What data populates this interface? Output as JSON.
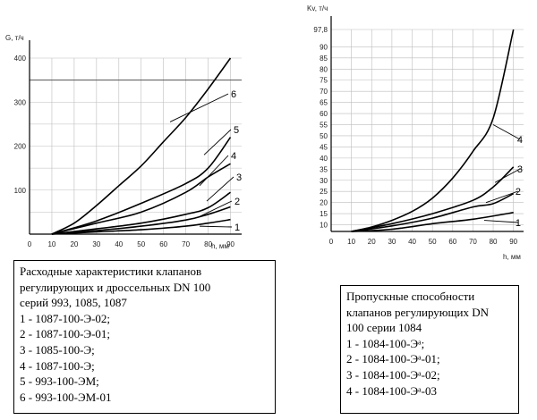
{
  "chart_data": [
    {
      "type": "line",
      "ylabel": "G, т/ч",
      "xlabel": "h, мм",
      "x_ticks": [
        "0",
        "10",
        "20",
        "30",
        "40",
        "50",
        "60",
        "70",
        "80",
        "90"
      ],
      "y_ticks": [
        "100",
        "200",
        "300",
        "400"
      ],
      "xlim": [
        0,
        95
      ],
      "ylim": [
        0,
        400
      ],
      "reference_line": 350,
      "grid": true,
      "series": [
        {
          "name": "1",
          "x": [
            10,
            30,
            50,
            70,
            80,
            90
          ],
          "y": [
            0,
            5,
            10,
            18,
            25,
            33
          ]
        },
        {
          "name": "2",
          "x": [
            10,
            30,
            50,
            70,
            80,
            90
          ],
          "y": [
            0,
            8,
            18,
            32,
            45,
            62
          ]
        },
        {
          "name": "3",
          "x": [
            10,
            30,
            50,
            70,
            80,
            90
          ],
          "y": [
            0,
            12,
            25,
            45,
            60,
            95
          ]
        },
        {
          "name": "4",
          "x": [
            10,
            30,
            50,
            70,
            80,
            90
          ],
          "y": [
            0,
            25,
            50,
            95,
            130,
            160
          ]
        },
        {
          "name": "5",
          "x": [
            10,
            30,
            50,
            70,
            80,
            90
          ],
          "y": [
            0,
            30,
            70,
            115,
            150,
            220
          ]
        },
        {
          "name": "6",
          "x": [
            10,
            20,
            30,
            40,
            50,
            60,
            70,
            80,
            90
          ],
          "y": [
            0,
            25,
            65,
            110,
            155,
            210,
            265,
            330,
            400
          ]
        }
      ],
      "curve_labels": [
        {
          "text": "6",
          "series": "6"
        },
        {
          "text": "5",
          "series": "5"
        },
        {
          "text": "4",
          "series": "4"
        },
        {
          "text": "3",
          "series": "3"
        },
        {
          "text": "2",
          "series": "2"
        },
        {
          "text": "1",
          "series": "1"
        }
      ]
    },
    {
      "type": "line",
      "ylabel": "Kv, т/ч",
      "xlabel": "h, мм",
      "x_ticks": [
        "0",
        "10",
        "20",
        "30",
        "40",
        "50",
        "60",
        "70",
        "80",
        "90"
      ],
      "y_ticks": [
        "10",
        "15",
        "20",
        "25",
        "30",
        "35",
        "40",
        "45",
        "50",
        "55",
        "60",
        "65",
        "70",
        "75",
        "80",
        "85",
        "90",
        "97,8"
      ],
      "y_tick_values": [
        10,
        15,
        20,
        25,
        30,
        35,
        40,
        45,
        50,
        55,
        60,
        65,
        70,
        75,
        80,
        85,
        90,
        97.8
      ],
      "xlim": [
        0,
        95
      ],
      "ylim": [
        7,
        97.8
      ],
      "grid": true,
      "series": [
        {
          "name": "1",
          "x": [
            10,
            30,
            50,
            70,
            90
          ],
          "y": [
            7,
            8,
            10.5,
            12.5,
            15.5
          ]
        },
        {
          "name": "2",
          "x": [
            10,
            30,
            50,
            70,
            80,
            90
          ],
          "y": [
            7,
            9.5,
            13,
            18,
            19.5,
            24
          ]
        },
        {
          "name": "3",
          "x": [
            10,
            30,
            50,
            70,
            80,
            90
          ],
          "y": [
            7,
            10.5,
            15,
            21,
            27,
            36
          ]
        },
        {
          "name": "4",
          "x": [
            10,
            20,
            30,
            40,
            50,
            60,
            70,
            80,
            90
          ],
          "y": [
            7,
            9,
            12,
            16,
            22,
            31,
            43,
            58,
            97.8
          ]
        }
      ],
      "curve_labels": [
        {
          "text": "4",
          "series": "4"
        },
        {
          "text": "3",
          "series": "3"
        },
        {
          "text": "2",
          "series": "2"
        },
        {
          "text": "1",
          "series": "1"
        }
      ]
    }
  ],
  "legend_left": {
    "lines": [
      "Расходные характеристики клапанов",
      "регулирующих и дроссельных  DN 100",
      "серий 993, 1085, 1087",
      "1 - 1087-100-Э-02;",
      "2 - 1087-100-Э-01;",
      "3 - 1085-100-Э;",
      "4 - 1087-100-Э;",
      "5 - 993-100-ЭМ;",
      "6 - 993-100-ЭМ-01"
    ]
  },
  "legend_right": {
    "lines": [
      "Пропускные способности",
      "клапанов регулирующих DN",
      "100 серии 1084",
      "1 - 1084-100-Эᵃ;",
      "2 - 1084-100-Эᵃ-01;",
      "3 - 1084-100-Эᵃ-02;",
      "4 - 1084-100-Эᵃ-03"
    ]
  }
}
